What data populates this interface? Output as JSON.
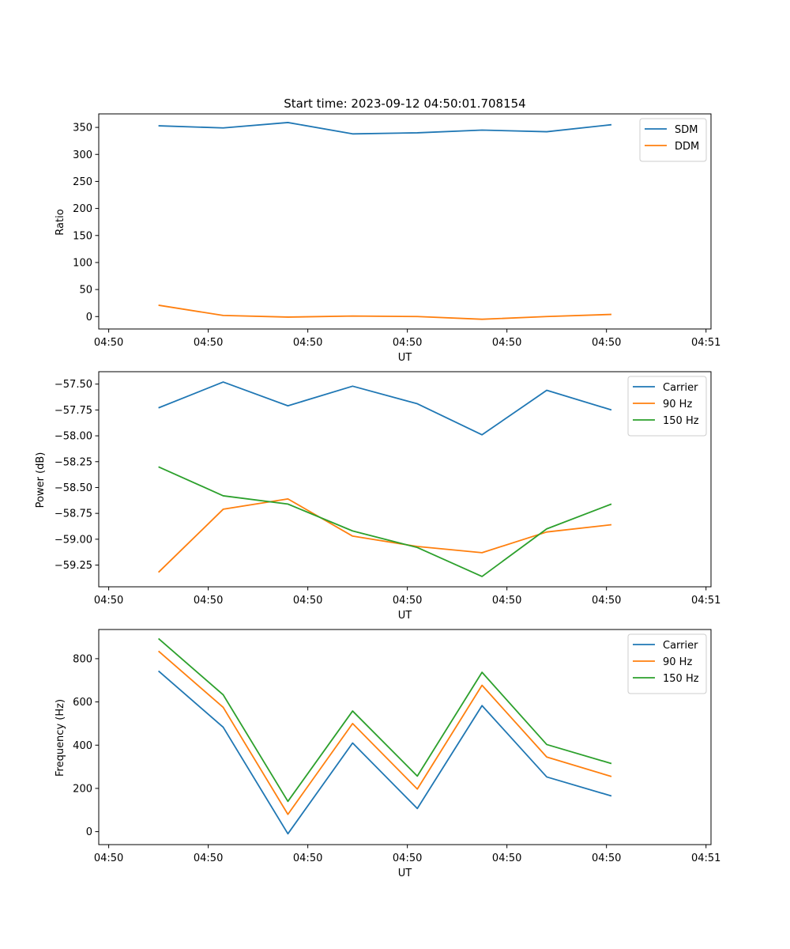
{
  "chart_data": [
    {
      "type": "line",
      "title": "Start time: 2023-09-12 04:50:01.708154",
      "xlabel": "UT",
      "ylabel": "Ratio",
      "x": [
        0.5,
        1.15,
        1.8,
        2.45,
        3.1,
        3.75,
        4.4,
        5.05
      ],
      "xlim": [
        -0.1,
        6.05
      ],
      "xticks": [
        0,
        1,
        2,
        3,
        4,
        5,
        6
      ],
      "xtick_labels": [
        "04:50",
        "04:50",
        "04:50",
        "04:50",
        "04:50",
        "04:50",
        "04:51"
      ],
      "ylim": [
        -23,
        375
      ],
      "yticks": [
        0,
        50,
        100,
        150,
        200,
        250,
        300,
        350
      ],
      "ytick_labels": [
        "0",
        "50",
        "100",
        "150",
        "200",
        "250",
        "300",
        "350"
      ],
      "legend": "top-right",
      "series": [
        {
          "name": "SDM",
          "color": "#1f77b4",
          "values": [
            353,
            349,
            359,
            338,
            340,
            345,
            342,
            355
          ]
        },
        {
          "name": "DDM",
          "color": "#ff7f0e",
          "values": [
            21,
            2,
            -1,
            1,
            0,
            -5,
            0,
            4
          ]
        }
      ]
    },
    {
      "type": "line",
      "title": "",
      "xlabel": "UT",
      "ylabel": "Power (dB)",
      "x": [
        0.5,
        1.15,
        1.8,
        2.45,
        3.1,
        3.75,
        4.4,
        5.05
      ],
      "xlim": [
        -0.1,
        6.05
      ],
      "xticks": [
        0,
        1,
        2,
        3,
        4,
        5,
        6
      ],
      "xtick_labels": [
        "04:50",
        "04:50",
        "04:50",
        "04:50",
        "04:50",
        "04:50",
        "04:51"
      ],
      "ylim": [
        -59.46,
        -57.38
      ],
      "yticks": [
        -59.25,
        -59.0,
        -58.75,
        -58.5,
        -58.25,
        -58.0,
        -57.75,
        -57.5
      ],
      "ytick_labels": [
        "−59.25",
        "−59.00",
        "−58.75",
        "−58.50",
        "−58.25",
        "−58.00",
        "−57.75",
        "−57.50"
      ],
      "legend": "top-right",
      "series": [
        {
          "name": "Carrier",
          "color": "#1f77b4",
          "values": [
            -57.73,
            -57.48,
            -57.71,
            -57.52,
            -57.69,
            -57.99,
            -57.56,
            -57.75
          ]
        },
        {
          "name": "90 Hz",
          "color": "#ff7f0e",
          "values": [
            -59.32,
            -58.71,
            -58.61,
            -58.97,
            -59.07,
            -59.13,
            -58.93,
            -58.86
          ]
        },
        {
          "name": "150 Hz",
          "color": "#2ca02c",
          "values": [
            -58.3,
            -58.58,
            -58.66,
            -58.92,
            -59.08,
            -59.36,
            -58.9,
            -58.66
          ]
        }
      ]
    },
    {
      "type": "line",
      "title": "",
      "xlabel": "UT",
      "ylabel": "Frequency (Hz)",
      "x": [
        0.5,
        1.15,
        1.8,
        2.45,
        3.1,
        3.75,
        4.4,
        5.05
      ],
      "xlim": [
        -0.1,
        6.05
      ],
      "xticks": [
        0,
        1,
        2,
        3,
        4,
        5,
        6
      ],
      "xtick_labels": [
        "04:50",
        "04:50",
        "04:50",
        "04:50",
        "04:50",
        "04:50",
        "04:51"
      ],
      "ylim": [
        -60,
        935
      ],
      "yticks": [
        0,
        200,
        400,
        600,
        800
      ],
      "ytick_labels": [
        "0",
        "200",
        "400",
        "600",
        "800"
      ],
      "legend": "top-right",
      "series": [
        {
          "name": "Carrier",
          "color": "#1f77b4",
          "values": [
            743,
            483,
            -10,
            410,
            107,
            583,
            253,
            165
          ]
        },
        {
          "name": "90 Hz",
          "color": "#ff7f0e",
          "values": [
            835,
            575,
            80,
            500,
            197,
            677,
            345,
            255
          ]
        },
        {
          "name": "150 Hz",
          "color": "#2ca02c",
          "values": [
            893,
            633,
            140,
            558,
            257,
            737,
            403,
            315
          ]
        }
      ]
    }
  ]
}
